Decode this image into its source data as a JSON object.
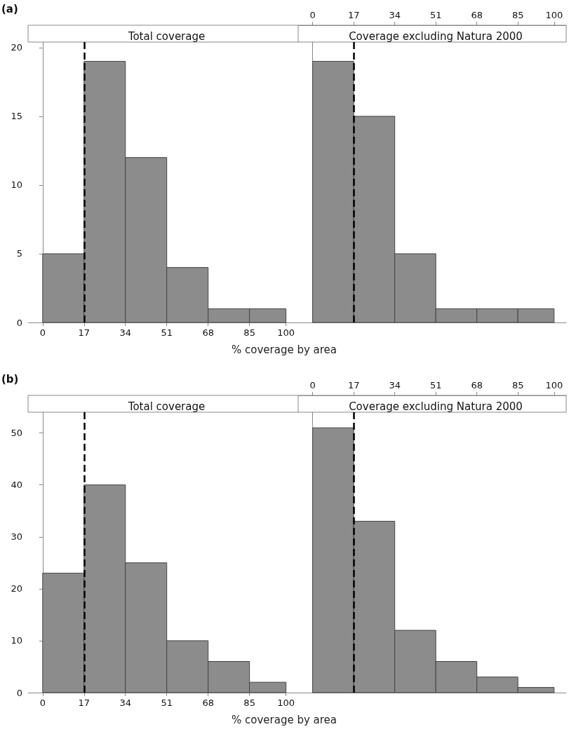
{
  "chart_data": [
    {
      "type": "histogram",
      "title": "Total coverage",
      "xlabel": "% coverage by area",
      "annotations": [
        "(a)"
      ],
      "bins": [
        0,
        17,
        34,
        51,
        68,
        85,
        100
      ],
      "values": [
        5,
        19,
        12,
        4,
        1,
        1
      ],
      "color": "#8c8c8c",
      "xlim": [
        -6,
        105
      ],
      "xticks": [
        0,
        17,
        34,
        51,
        68,
        85,
        100
      ],
      "ylim": [
        0,
        20.4
      ],
      "yticks": [
        0,
        5,
        10,
        15,
        20
      ],
      "ref_lines": [
        {
          "axis": "x",
          "value": 17,
          "color": "#000000",
          "line_style": "dashed"
        }
      ]
    },
    {
      "type": "histogram",
      "title": "Coverage excluding Natura 2000",
      "bins": [
        0,
        17,
        34,
        51,
        68,
        85,
        100
      ],
      "values": [
        19,
        15,
        5,
        1,
        1,
        1
      ],
      "color": "#8c8c8c",
      "xlim": [
        -6,
        105
      ],
      "xticks": [
        0,
        17,
        34,
        51,
        68,
        85,
        100
      ],
      "ylim": [
        0,
        20.4
      ],
      "tick_labels": "x",
      "ref_lines": [
        {
          "axis": "x",
          "value": 17,
          "color": "#000000",
          "line_style": "dashed"
        }
      ]
    },
    {
      "type": "histogram",
      "title": "Total coverage",
      "xlabel": "% coverage by area",
      "annotations": [
        "(b)"
      ],
      "bins": [
        0,
        17,
        34,
        51,
        68,
        85,
        100
      ],
      "values": [
        23,
        40,
        25,
        10,
        6,
        2
      ],
      "color": "#8c8c8c",
      "xlim": [
        -6,
        105
      ],
      "xticks": [
        0,
        17,
        34,
        51,
        68,
        85,
        100
      ],
      "ylim": [
        0,
        54
      ],
      "yticks": [
        0,
        10,
        20,
        30,
        40,
        50
      ],
      "ref_lines": [
        {
          "axis": "x",
          "value": 17,
          "color": "#000000",
          "line_style": "dashed"
        }
      ]
    },
    {
      "type": "histogram",
      "title": "Coverage excluding Natura 2000",
      "bins": [
        0,
        17,
        34,
        51,
        68,
        85,
        100
      ],
      "values": [
        51,
        33,
        12,
        6,
        3,
        1
      ],
      "color": "#8c8c8c",
      "xlim": [
        -6,
        105
      ],
      "xticks": [
        0,
        17,
        34,
        51,
        68,
        85,
        100
      ],
      "ylim": [
        0,
        54
      ],
      "tick_labels": "x",
      "ref_lines": [
        {
          "axis": "x",
          "value": 17,
          "color": "#000000",
          "line_style": "dashed"
        }
      ]
    }
  ]
}
